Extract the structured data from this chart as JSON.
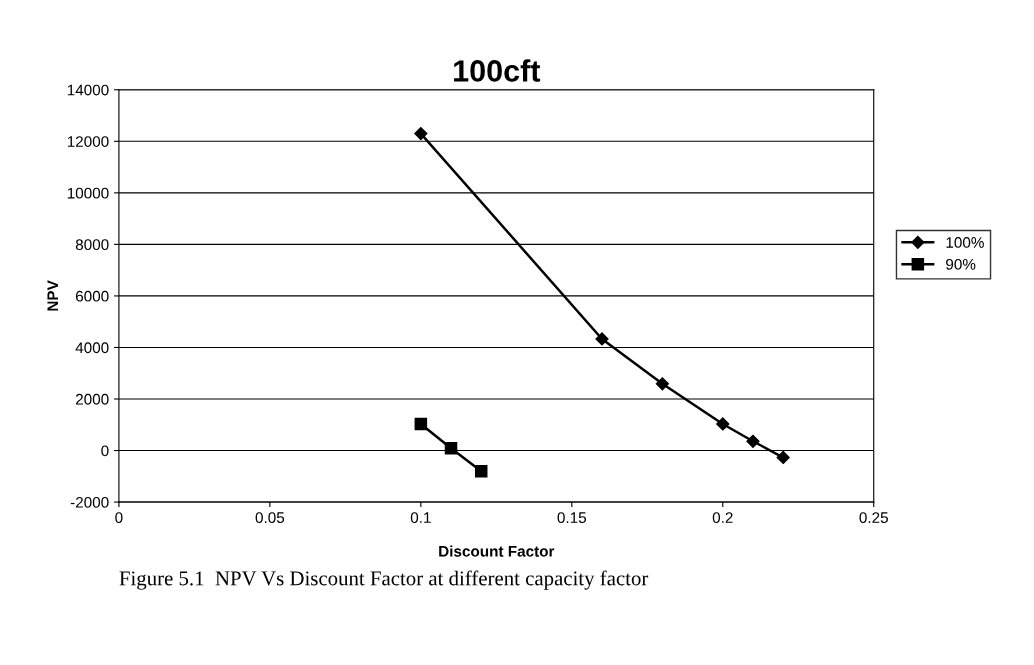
{
  "chart_data": {
    "type": "line",
    "title": "100cft",
    "xlabel": "Discount Factor",
    "ylabel": "NPV",
    "annotations": [
      "Figure 5.1  NPV Vs Discount Factor at different capacity factor"
    ],
    "series": [
      {
        "name": "100%",
        "color": "#000000",
        "marker": "diamond",
        "x": [
          0.1,
          0.16,
          0.18,
          0.2,
          0.21,
          0.22
        ],
        "values": [
          12300,
          4330,
          2590,
          1030,
          360,
          -270
        ]
      },
      {
        "name": "90%",
        "color": "#000000",
        "marker": "square",
        "x": [
          0.1,
          0.11,
          0.12
        ],
        "values": [
          1030,
          90,
          -800
        ]
      }
    ],
    "xlim": [
      0,
      0.25
    ],
    "xticks": [
      0,
      0.05,
      0.1,
      0.15,
      0.2,
      0.25
    ],
    "ylim": [
      -2000,
      14000
    ],
    "yticks": [
      -2000,
      0,
      2000,
      4000,
      6000,
      8000,
      10000,
      12000,
      14000
    ],
    "grid": "y",
    "legend": "right",
    "line_style": "solid"
  }
}
